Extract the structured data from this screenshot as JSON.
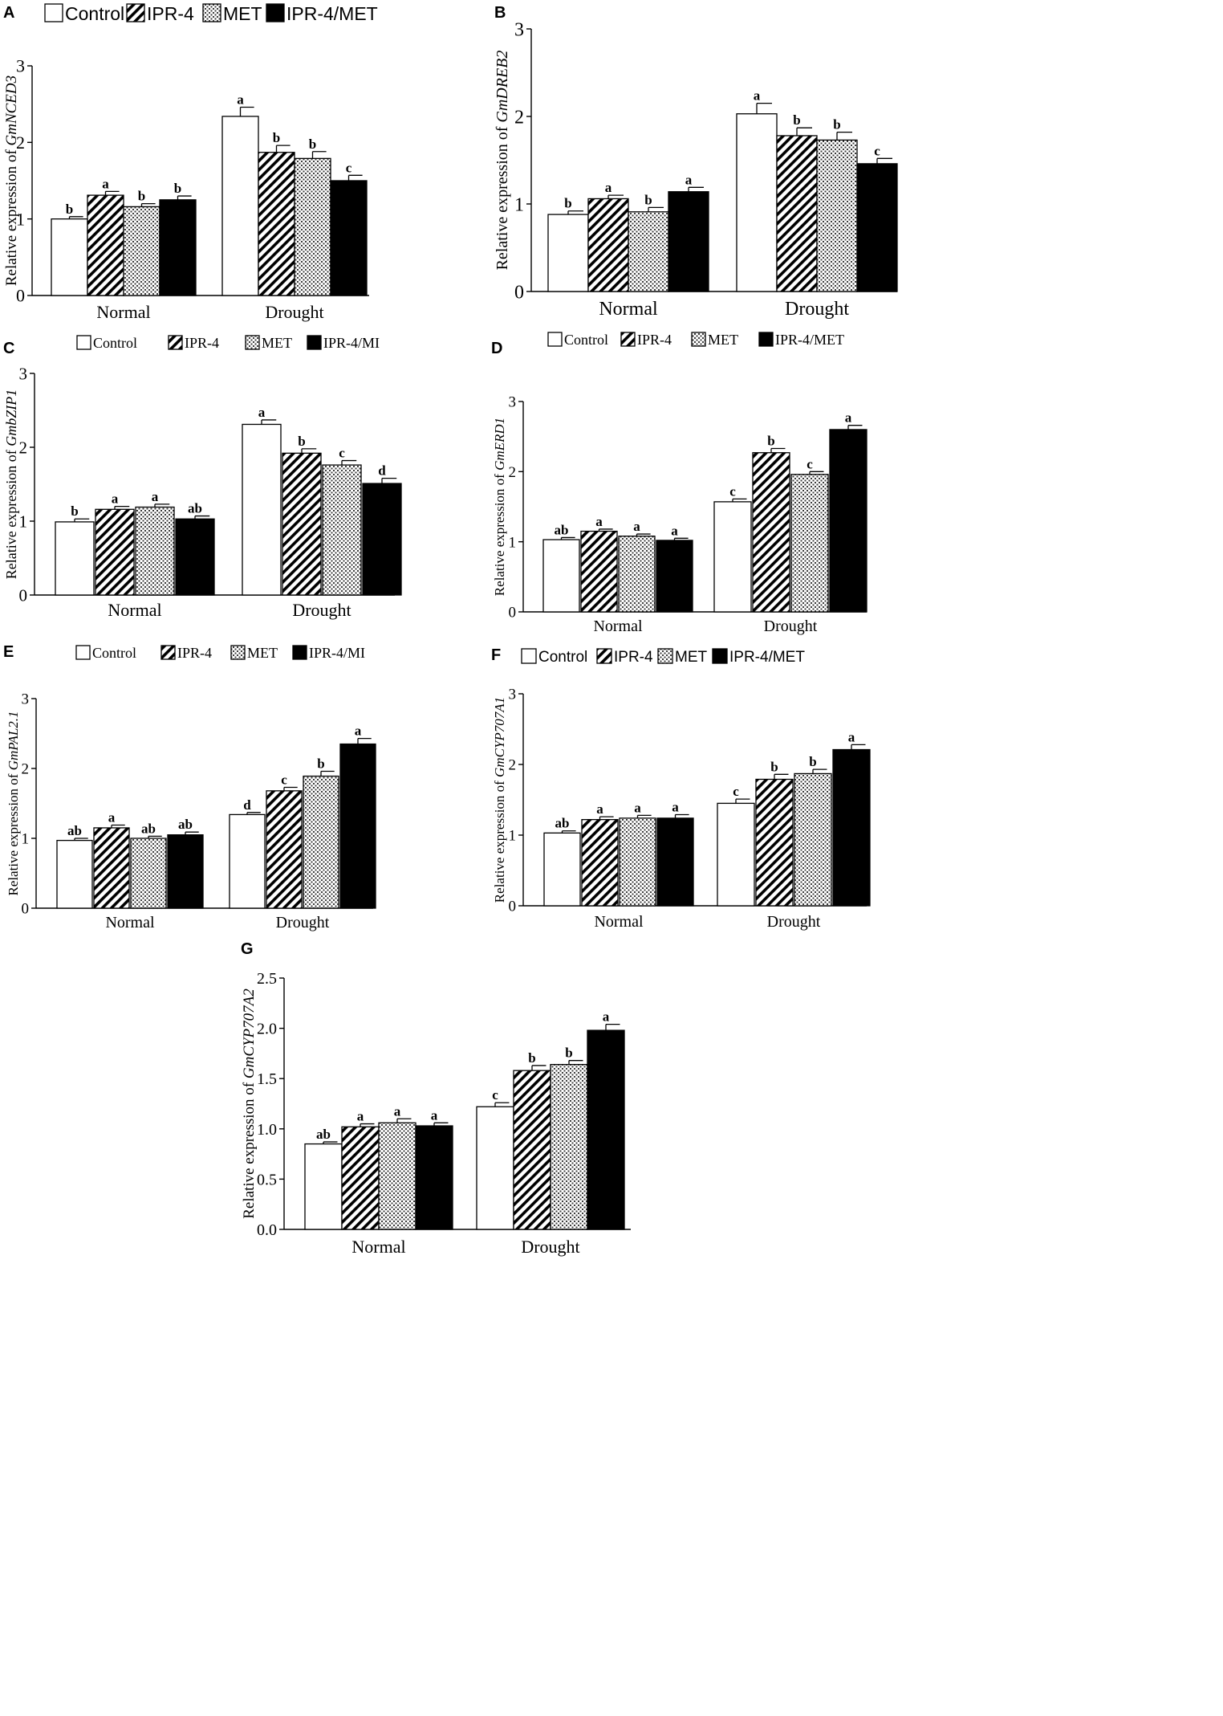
{
  "figure": {
    "series_names": [
      "Control",
      "IPR-4",
      "MET",
      "IPR-4/MET"
    ],
    "series_colors": [
      "#ffffff",
      "#000000",
      "#ffffff",
      "#000000"
    ],
    "series_patterns": [
      "none",
      "hatch",
      "dots",
      "solid"
    ]
  },
  "chart_data": [
    {
      "type": "bar",
      "panel": "A",
      "ylabel_prefix": "Relative expression of ",
      "ylabel_gene": "GmNCED3",
      "categories": [
        "Normal",
        "Drought"
      ],
      "legend": [
        "Control",
        "IPR-4",
        "MET",
        "IPR-4/MET"
      ],
      "ylim": [
        0,
        3
      ],
      "yticks": [
        "0",
        "1",
        "2",
        "3"
      ],
      "series": [
        {
          "name": "Control",
          "values": [
            1.0,
            2.34
          ],
          "errors": [
            0.03,
            0.12
          ],
          "letters": [
            "b",
            "a"
          ]
        },
        {
          "name": "IPR-4",
          "values": [
            1.31,
            1.87
          ],
          "errors": [
            0.05,
            0.09
          ],
          "letters": [
            "a",
            "b"
          ]
        },
        {
          "name": "MET",
          "values": [
            1.16,
            1.79
          ],
          "errors": [
            0.04,
            0.09
          ],
          "letters": [
            "b",
            "b"
          ]
        },
        {
          "name": "IPR-4/MET",
          "values": [
            1.25,
            1.5
          ],
          "errors": [
            0.05,
            0.07
          ],
          "letters": [
            "b",
            "c"
          ]
        }
      ]
    },
    {
      "type": "bar",
      "panel": "B",
      "ylabel_prefix": "Relative expression of ",
      "ylabel_gene": "GmDREB2",
      "categories": [
        "Normal",
        "Drought"
      ],
      "legend": [
        "Control",
        "IPR-4",
        "MET",
        "IPR-4/MET"
      ],
      "ylim": [
        0,
        3
      ],
      "yticks": [
        "0",
        "1",
        "2",
        "3"
      ],
      "series": [
        {
          "name": "Control",
          "values": [
            0.88,
            2.03
          ],
          "errors": [
            0.04,
            0.12
          ],
          "letters": [
            "b",
            "a"
          ]
        },
        {
          "name": "IPR-4",
          "values": [
            1.06,
            1.78
          ],
          "errors": [
            0.04,
            0.09
          ],
          "letters": [
            "a",
            "b"
          ]
        },
        {
          "name": "MET",
          "values": [
            0.91,
            1.73
          ],
          "errors": [
            0.05,
            0.09
          ],
          "letters": [
            "b",
            "b"
          ]
        },
        {
          "name": "IPR-4/MET",
          "values": [
            1.14,
            1.46
          ],
          "errors": [
            0.05,
            0.06
          ],
          "letters": [
            "a",
            "c"
          ]
        }
      ]
    },
    {
      "type": "bar",
      "panel": "C",
      "ylabel_prefix": "Relative expression of ",
      "ylabel_gene": "GmbZIP1",
      "categories": [
        "Normal",
        "Drought"
      ],
      "legend": [
        "Control",
        "IPR-4",
        "MET",
        "IPR-4/MI"
      ],
      "ylim": [
        0,
        3
      ],
      "yticks": [
        "0",
        "1",
        "2",
        "3"
      ],
      "series": [
        {
          "name": "Control",
          "values": [
            0.99,
            2.31
          ],
          "errors": [
            0.04,
            0.06
          ],
          "letters": [
            "b",
            "a"
          ]
        },
        {
          "name": "IPR-4",
          "values": [
            1.16,
            1.92
          ],
          "errors": [
            0.04,
            0.06
          ],
          "letters": [
            "a",
            "b"
          ]
        },
        {
          "name": "MET",
          "values": [
            1.19,
            1.76
          ],
          "errors": [
            0.04,
            0.06
          ],
          "letters": [
            "a",
            "c"
          ]
        },
        {
          "name": "IPR-4/MET",
          "values": [
            1.03,
            1.51
          ],
          "errors": [
            0.04,
            0.07
          ],
          "letters": [
            "ab",
            "d"
          ]
        }
      ]
    },
    {
      "type": "bar",
      "panel": "D",
      "ylabel_prefix": "Relative expression of ",
      "ylabel_gene": "GmERD1",
      "categories": [
        "Normal",
        "Drought"
      ],
      "legend": [
        "Control",
        "IPR-4",
        "MET",
        "IPR-4/MET"
      ],
      "ylim": [
        0,
        3
      ],
      "yticks": [
        "0",
        "1",
        "2",
        "3"
      ],
      "series": [
        {
          "name": "Control",
          "values": [
            1.03,
            1.57
          ],
          "errors": [
            0.03,
            0.04
          ],
          "letters": [
            "ab",
            "c"
          ]
        },
        {
          "name": "IPR-4",
          "values": [
            1.15,
            2.27
          ],
          "errors": [
            0.03,
            0.06
          ],
          "letters": [
            "a",
            "b"
          ]
        },
        {
          "name": "MET",
          "values": [
            1.08,
            1.96
          ],
          "errors": [
            0.03,
            0.04
          ],
          "letters": [
            "a",
            "c"
          ]
        },
        {
          "name": "IPR-4/MET",
          "values": [
            1.02,
            2.6
          ],
          "errors": [
            0.03,
            0.06
          ],
          "letters": [
            "a",
            "a"
          ]
        }
      ]
    },
    {
      "type": "bar",
      "panel": "E",
      "ylabel_prefix": "Relative expression of ",
      "ylabel_gene": "GmPAL2.1",
      "categories": [
        "Normal",
        "Drought"
      ],
      "legend": [
        "Control",
        "IPR-4",
        "MET",
        "IPR-4/MI"
      ],
      "ylim": [
        0,
        3
      ],
      "yticks": [
        "0",
        "1",
        "2",
        "3"
      ],
      "series": [
        {
          "name": "Control",
          "values": [
            0.97,
            1.34
          ],
          "errors": [
            0.03,
            0.03
          ],
          "letters": [
            "ab",
            "d"
          ]
        },
        {
          "name": "IPR-4",
          "values": [
            1.15,
            1.68
          ],
          "errors": [
            0.04,
            0.05
          ],
          "letters": [
            "a",
            "c"
          ]
        },
        {
          "name": "MET",
          "values": [
            1.0,
            1.89
          ],
          "errors": [
            0.03,
            0.07
          ],
          "letters": [
            "ab",
            "b"
          ]
        },
        {
          "name": "IPR-4/MET",
          "values": [
            1.05,
            2.35
          ],
          "errors": [
            0.04,
            0.08
          ],
          "letters": [
            "ab",
            "a"
          ]
        }
      ]
    },
    {
      "type": "bar",
      "panel": "F",
      "ylabel_prefix": "Relative expression of ",
      "ylabel_gene": "GmCYP707A1",
      "categories": [
        "Normal",
        "Drought"
      ],
      "legend": [
        "Control",
        "IPR-4",
        "MET",
        "IPR-4/MET"
      ],
      "ylim": [
        0,
        3
      ],
      "yticks": [
        "0",
        "1",
        "2",
        "3"
      ],
      "series": [
        {
          "name": "Control",
          "values": [
            1.03,
            1.45
          ],
          "errors": [
            0.03,
            0.06
          ],
          "letters": [
            "ab",
            "c"
          ]
        },
        {
          "name": "IPR-4",
          "values": [
            1.22,
            1.79
          ],
          "errors": [
            0.04,
            0.07
          ],
          "letters": [
            "a",
            "b"
          ]
        },
        {
          "name": "MET",
          "values": [
            1.24,
            1.87
          ],
          "errors": [
            0.04,
            0.06
          ],
          "letters": [
            "a",
            "b"
          ]
        },
        {
          "name": "IPR-4/MET",
          "values": [
            1.24,
            2.21
          ],
          "errors": [
            0.05,
            0.07
          ],
          "letters": [
            "a",
            "a"
          ]
        }
      ]
    },
    {
      "type": "bar",
      "panel": "G",
      "ylabel_prefix": "Relative expression of ",
      "ylabel_gene": "GmCYP707A2",
      "categories": [
        "Normal",
        "Drought"
      ],
      "legend": [],
      "ylim": [
        0,
        2.5
      ],
      "yticks": [
        "0.0",
        "0.5",
        "1.0",
        "1.5",
        "2.0",
        "2.5"
      ],
      "series": [
        {
          "name": "Control",
          "values": [
            0.85,
            1.22
          ],
          "errors": [
            0.02,
            0.04
          ],
          "letters": [
            "ab",
            "c"
          ]
        },
        {
          "name": "IPR-4",
          "values": [
            1.02,
            1.58
          ],
          "errors": [
            0.03,
            0.05
          ],
          "letters": [
            "a",
            "b"
          ]
        },
        {
          "name": "MET",
          "values": [
            1.06,
            1.64
          ],
          "errors": [
            0.04,
            0.04
          ],
          "letters": [
            "a",
            "b"
          ]
        },
        {
          "name": "IPR-4/MET",
          "values": [
            1.03,
            1.98
          ],
          "errors": [
            0.03,
            0.06
          ],
          "letters": [
            "a",
            "a"
          ]
        }
      ]
    }
  ]
}
